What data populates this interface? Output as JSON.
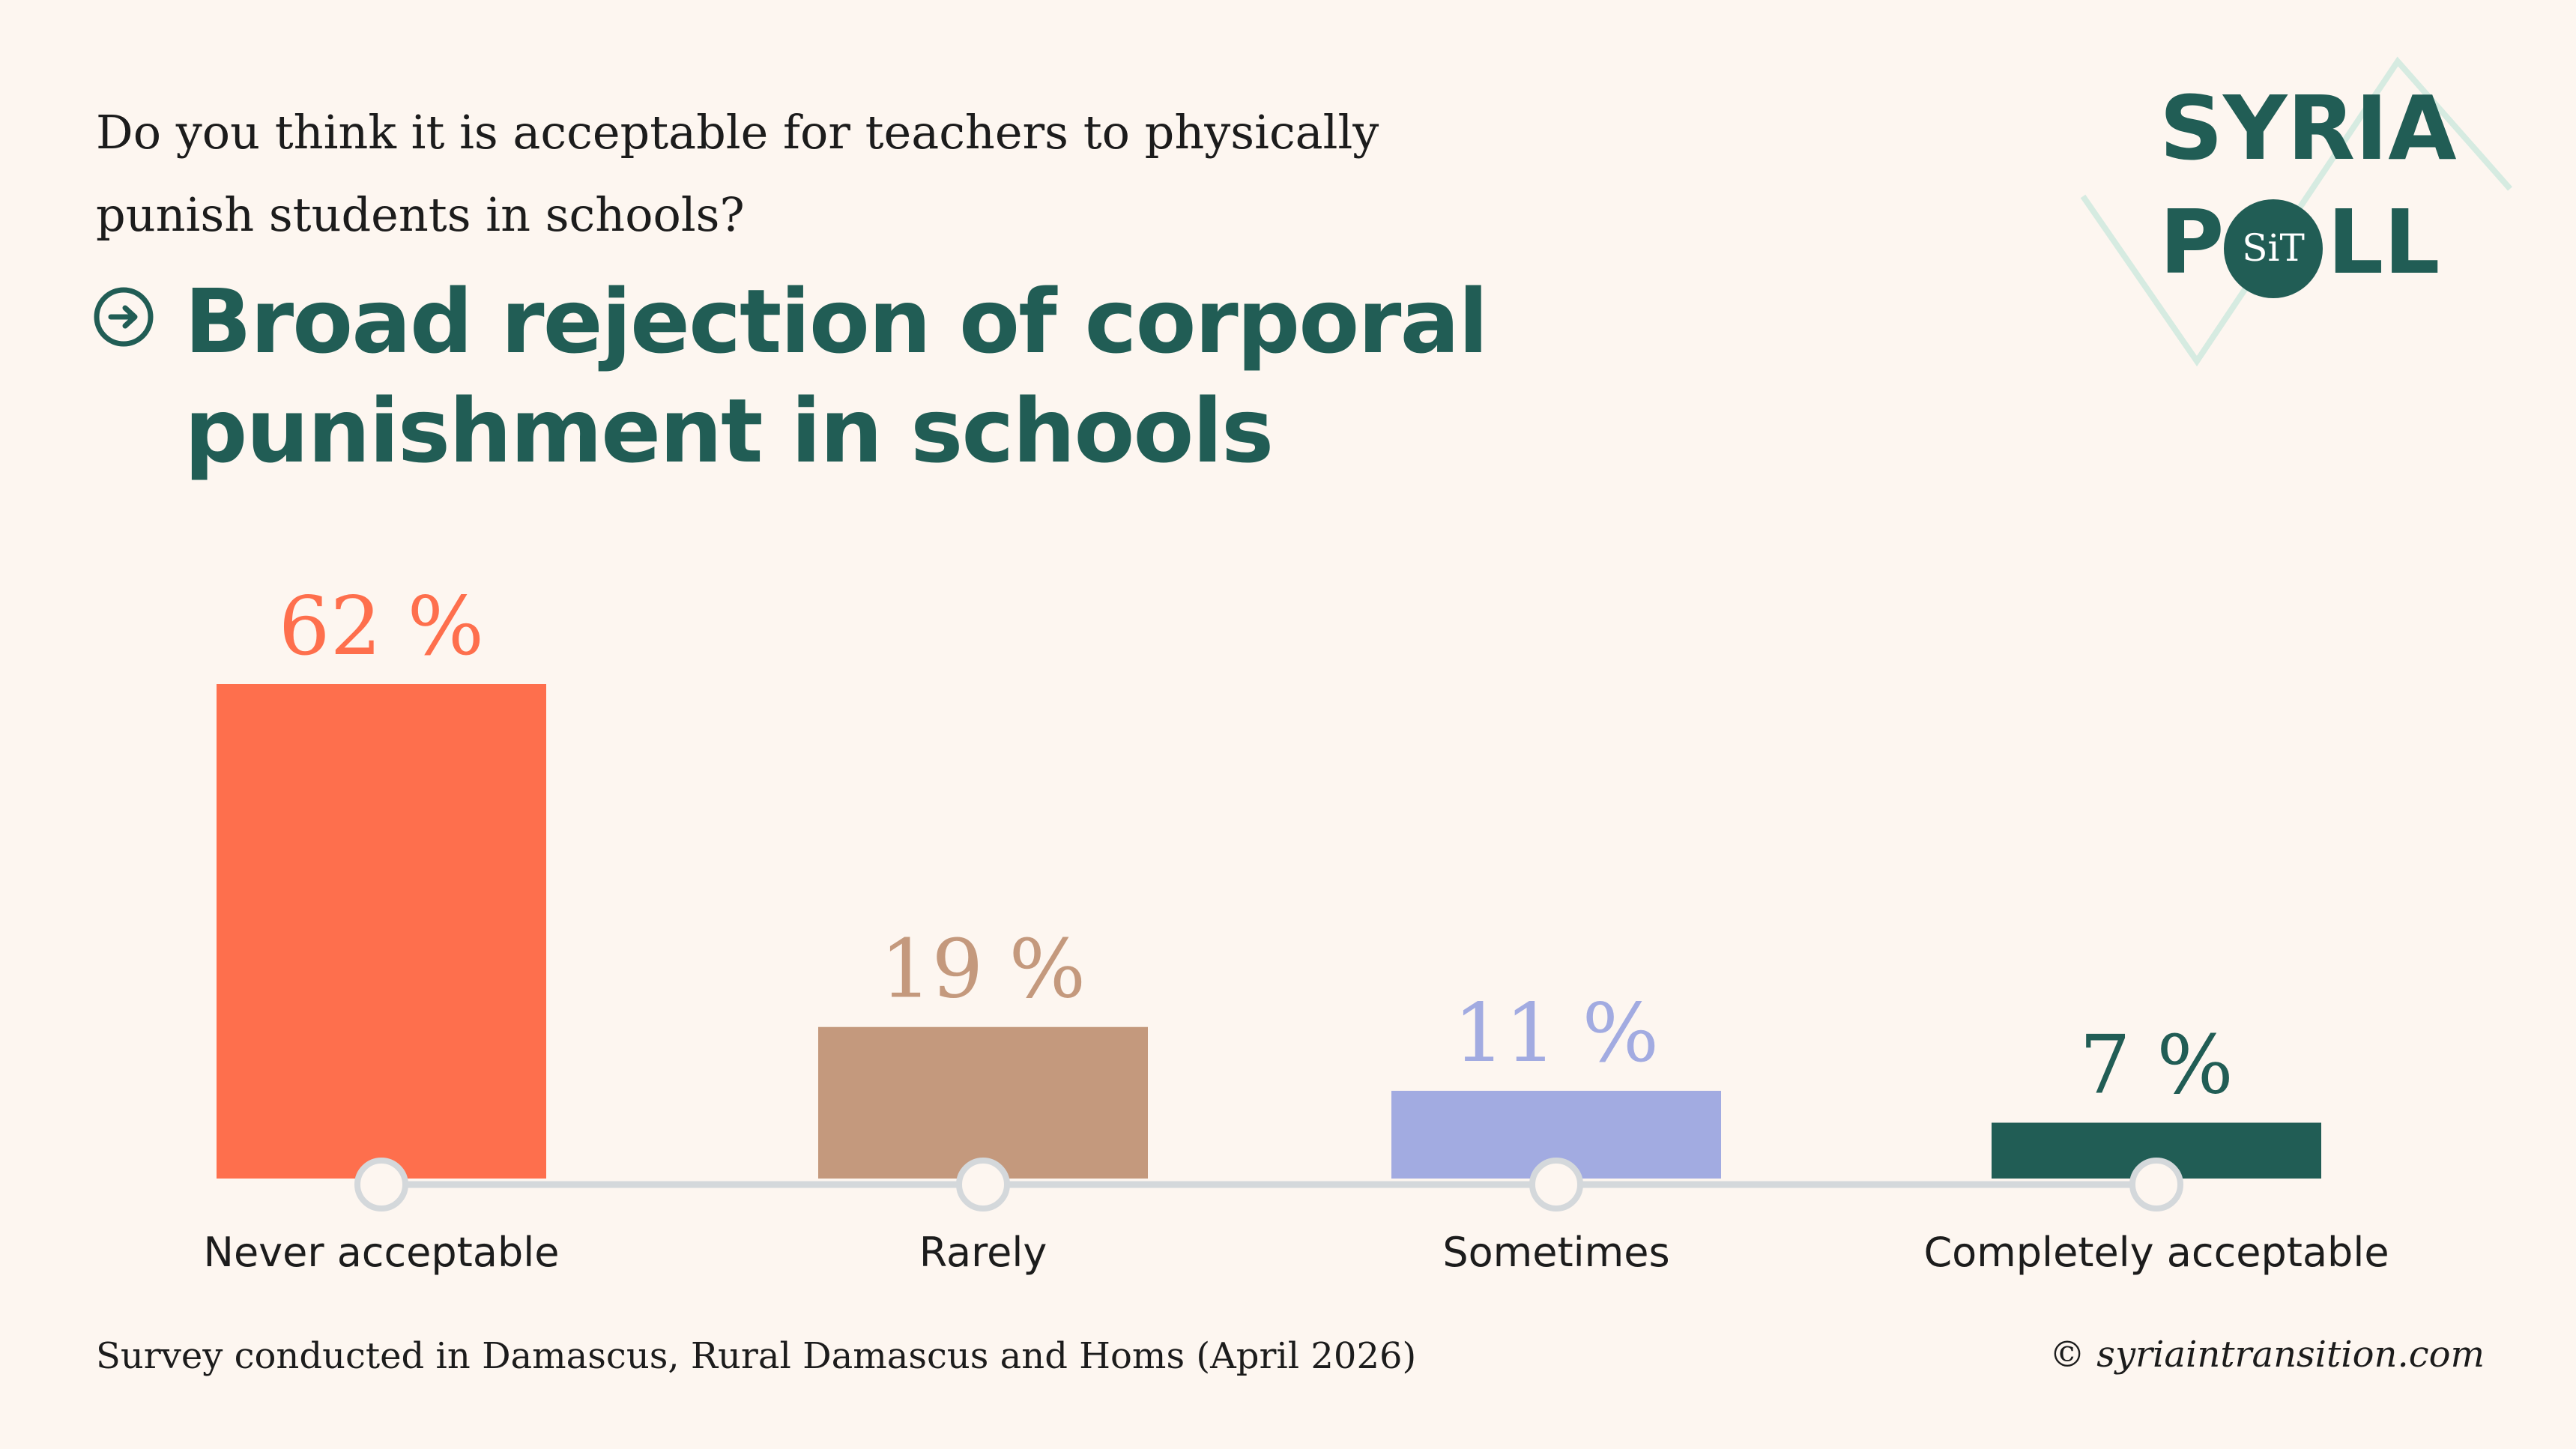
{
  "question": "Do you think it is acceptable for teachers to physically punish students in schools?",
  "headline": "Broad rejection of corporal punishment in schools",
  "logo": {
    "line1": "SYRIA",
    "line2_left": "P",
    "badge": "SiT",
    "line2_right": "LL"
  },
  "footer": {
    "note": "Survey conducted in Damascus, Rural Damascus and Homs (April 2026)",
    "copyright": "© syriaintransition.com"
  },
  "colors": {
    "background": "#fdf6f0",
    "brand": "#215d55",
    "axis": "#d4d8db"
  },
  "chart_data": {
    "type": "bar",
    "categories": [
      "Never acceptable",
      "Rarely",
      "Sometimes",
      "Completely acceptable"
    ],
    "values": [
      62,
      19,
      11,
      7
    ],
    "value_labels": [
      "62 %",
      "19 %",
      "11 %",
      "7 %"
    ],
    "colors": [
      "#fe6f4d",
      "#c4997d",
      "#a2abe1",
      "#215d55"
    ],
    "label_colors": [
      "#fe6f4d",
      "#c4997d",
      "#a2abe1",
      "#215d55"
    ],
    "unit": "%",
    "ylim": [
      0,
      62
    ],
    "grid": false,
    "legend": "none"
  }
}
